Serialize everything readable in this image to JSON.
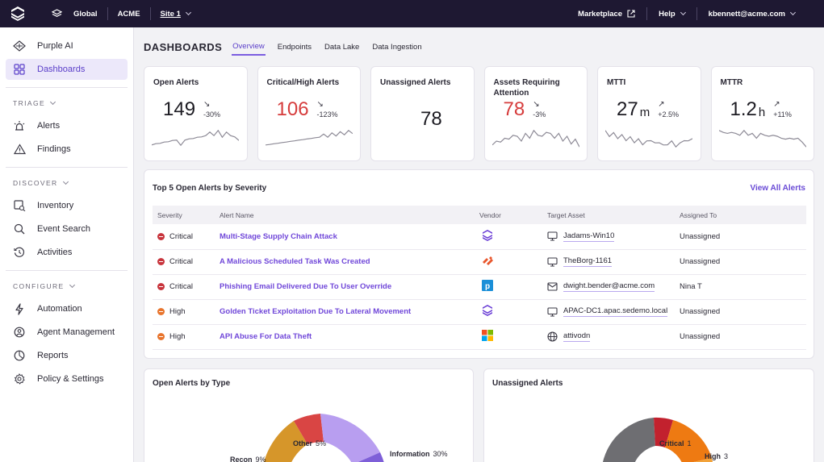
{
  "topbar": {
    "scope": "Global",
    "account": "ACME",
    "site": "Site 1",
    "marketplace": "Marketplace",
    "help": "Help",
    "user": "kbennett@acme.com"
  },
  "sidebar": {
    "top_items": [
      {
        "label": "Purple AI",
        "icon": "purple-ai-icon"
      },
      {
        "label": "Dashboards",
        "icon": "dashboards-icon",
        "active": true
      }
    ],
    "sections": [
      {
        "label": "TRIAGE",
        "items": [
          {
            "label": "Alerts",
            "icon": "alerts-icon"
          },
          {
            "label": "Findings",
            "icon": "findings-icon"
          }
        ]
      },
      {
        "label": "DISCOVER",
        "items": [
          {
            "label": "Inventory",
            "icon": "inventory-icon"
          },
          {
            "label": "Event Search",
            "icon": "search-icon"
          },
          {
            "label": "Activities",
            "icon": "activities-icon"
          }
        ]
      },
      {
        "label": "CONFIGURE",
        "items": [
          {
            "label": "Automation",
            "icon": "automation-icon"
          },
          {
            "label": "Agent Management",
            "icon": "agent-icon"
          },
          {
            "label": "Reports",
            "icon": "reports-icon"
          },
          {
            "label": "Policy & Settings",
            "icon": "gear-icon"
          }
        ]
      }
    ]
  },
  "header": {
    "title": "DASHBOARDS",
    "tabs": [
      "Overview",
      "Endpoints",
      "Data Lake",
      "Data Ingestion"
    ],
    "active_tab": 0
  },
  "kpis": [
    {
      "title": "Open Alerts",
      "value": "149",
      "unit": "",
      "delta": "-30%",
      "arrow": "↘",
      "color": "#1c1b22",
      "spark": [
        5,
        7,
        6,
        8,
        7,
        9,
        8,
        6,
        8,
        10,
        9,
        11,
        10,
        12,
        13,
        12,
        14,
        11,
        13,
        12,
        10,
        9
      ]
    },
    {
      "title": "Critical/High Alerts",
      "value": "106",
      "unit": "",
      "delta": "-123%",
      "arrow": "↘",
      "color": "#d63c3c",
      "spark": [
        3,
        5,
        4,
        6,
        5,
        7,
        6,
        8,
        7,
        9,
        8,
        10,
        9,
        11,
        12,
        11,
        13,
        12,
        14,
        13,
        15,
        14
      ]
    },
    {
      "title": "Unassigned Alerts",
      "value": "78",
      "unit": "",
      "delta": "",
      "arrow": "",
      "color": "#1c1b22",
      "spark": []
    },
    {
      "title": "Assets Requiring Attention",
      "value": "78",
      "unit": "",
      "delta": "-3%",
      "arrow": "↘",
      "color": "#d63c3c",
      "spark": [
        6,
        8,
        7,
        9,
        8,
        10,
        9,
        8,
        10,
        9,
        11,
        10,
        9,
        11,
        10,
        9,
        10,
        8,
        9,
        7,
        8,
        6
      ]
    },
    {
      "title": "MTTI",
      "value": "27",
      "unit": "m",
      "delta": "+2.5%",
      "arrow": "↗",
      "color": "#1c1b22",
      "spark": [
        12,
        10,
        11,
        9,
        10,
        8,
        9,
        7,
        8,
        6,
        7,
        8,
        6,
        7,
        5,
        6,
        7,
        5,
        6,
        8,
        7,
        9
      ]
    },
    {
      "title": "MTTR",
      "value": "1.2",
      "unit": "h",
      "delta": "+11%",
      "arrow": "↗",
      "color": "#1c1b22",
      "spark": [
        9,
        9,
        8,
        9,
        8,
        8,
        9,
        8,
        8,
        7,
        8,
        8,
        7,
        8,
        7,
        7,
        6,
        7,
        6,
        7,
        5,
        4
      ]
    }
  ],
  "top5": {
    "title": "Top 5 Open Alerts by Severity",
    "view_all": "View All Alerts",
    "columns": [
      "Severity",
      "Alert Name",
      "Vendor",
      "Target Asset",
      "Assigned To"
    ],
    "rows": [
      {
        "severity": "Critical",
        "name": "Multi-Stage Supply Chain Attack",
        "vendor": "sentinelone-logo",
        "asset_icon": "monitor-icon",
        "asset": "Jadams-Win10",
        "assigned": "Unassigned"
      },
      {
        "severity": "Critical",
        "name": "A Malicious Scheduled Task Was Created",
        "vendor": "paloalto-logo",
        "asset_icon": "monitor-icon",
        "asset": "TheBorg-1161",
        "assigned": "Unassigned"
      },
      {
        "severity": "Critical",
        "name": "Phishing Email Delivered Due To User Override",
        "vendor": "proofpoint-logo",
        "asset_icon": "mail-icon",
        "asset": "dwight.bender@acme.com",
        "assigned": "Nina T"
      },
      {
        "severity": "High",
        "name": "Golden Ticket Exploitation Due To Lateral Movement",
        "vendor": "sentinelone-logo",
        "asset_icon": "monitor-icon",
        "asset": "APAC-DC1.apac.sedemo.local",
        "assigned": "Unassigned"
      },
      {
        "severity": "High",
        "name": "API Abuse For Data Theft",
        "vendor": "microsoft-logo",
        "asset_icon": "globe-icon",
        "asset": "attivodn",
        "assigned": "Unassigned"
      }
    ]
  },
  "charts": {
    "by_type": {
      "title": "Open Alerts by Type",
      "labels": [
        {
          "name": "Other",
          "value": "5%"
        },
        {
          "name": "Recon",
          "value": "9%"
        },
        {
          "name": "Information",
          "value": "30%"
        }
      ]
    },
    "unassigned": {
      "title": "Unassigned Alerts",
      "labels": [
        {
          "name": "Critical",
          "value": "1"
        },
        {
          "name": "High",
          "value": "3"
        }
      ]
    }
  },
  "colors": {
    "accent": "#7047d9",
    "critical": "#c8343c",
    "high": "#e8742c",
    "topbar": "#1e1832"
  }
}
